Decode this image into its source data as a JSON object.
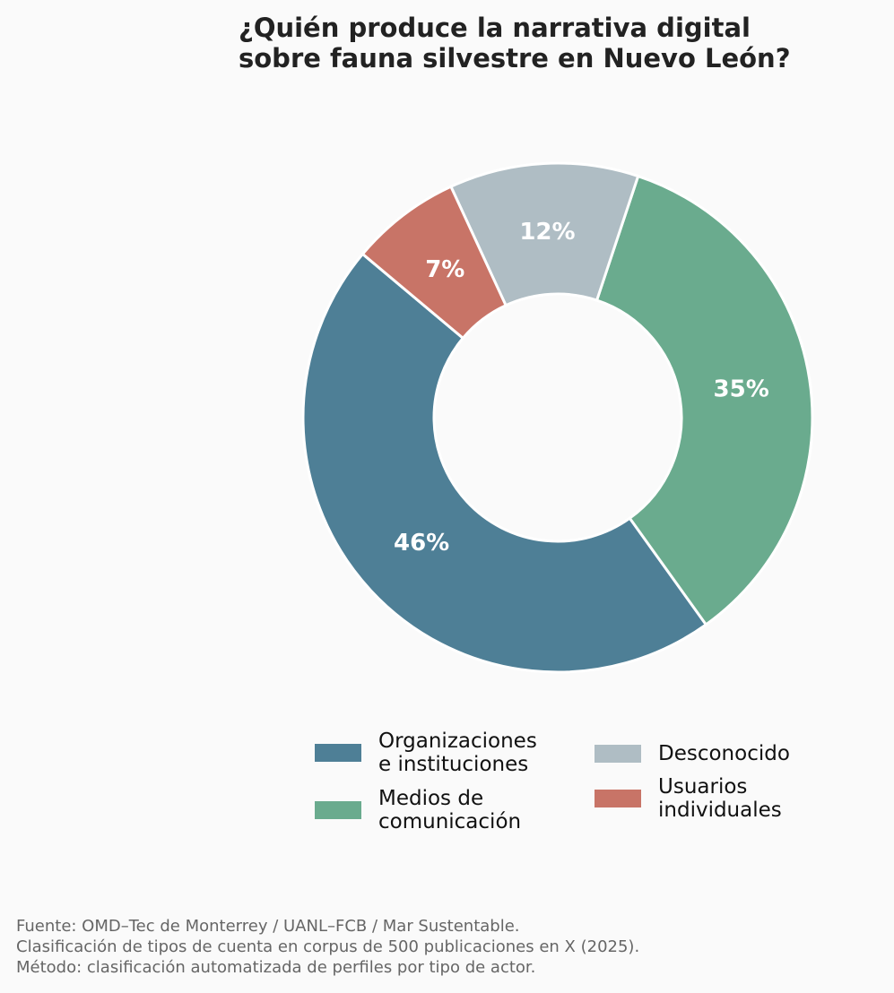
{
  "chart_data": {
    "type": "donut",
    "title": "¿Quién produce la narrativa digital\nsobre fauna silvestre en Nuevo León?",
    "categories": [
      "Organizaciones\ne instituciones",
      "Medios de\ncomunicación",
      "Desconocido",
      "Usuarios\nindividuales"
    ],
    "values": [
      46,
      35,
      12,
      7
    ],
    "value_labels": [
      "46%",
      "35%",
      "12%",
      "7%"
    ],
    "colors": [
      "#4e7f96",
      "#6aab8e",
      "#afbdc4",
      "#c87467"
    ],
    "footnote": "Fuente: OMD–Tec de Monterrey / UANL–FCB / Mar Sustentable.\nClasificación de tipos de cuenta en corpus de 500 publicaciones en X (2025).\nMétodo: clasificación automatizada de perfiles por tipo de actor."
  }
}
